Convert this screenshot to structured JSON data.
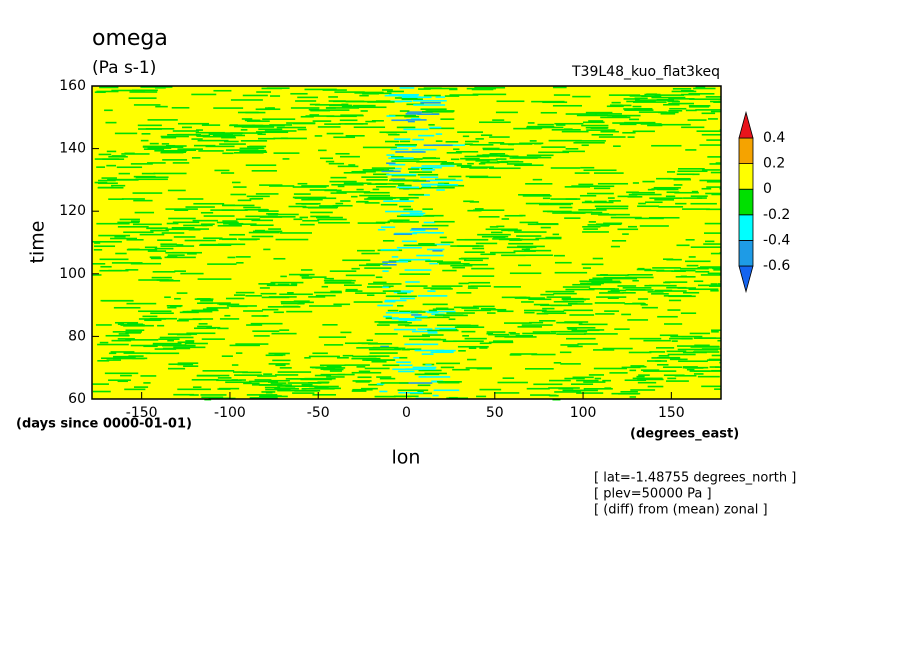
{
  "chart_data": {
    "type": "contour",
    "title": "omega",
    "units": "(Pa s-1)",
    "run_label": "T39L48_kuo_flat3keq",
    "x_label": "lon",
    "y_label": "time",
    "x_units": "(degrees_east)",
    "y_units": "(days since 0000-01-01)",
    "xlim": [
      -178.125,
      178.125
    ],
    "xticks": [
      -150,
      -100,
      -50,
      0,
      50,
      100,
      150
    ],
    "ylim": [
      60,
      160
    ],
    "yticks": [
      60,
      80,
      100,
      120,
      140,
      160
    ],
    "levels": [
      -0.6,
      -0.4,
      -0.2,
      0,
      0.2,
      0.4
    ],
    "colors": [
      "#1464f0",
      "#1e9be6",
      "#00ffff",
      "#00e000",
      "#ffff00",
      "#f5a300",
      "#e8141c"
    ],
    "annotations": [
      "[ lat=-1.48755 degrees_north ]",
      "[ plev=50000 Pa ]",
      "[ (diff) from (mean) zonal ]"
    ]
  }
}
